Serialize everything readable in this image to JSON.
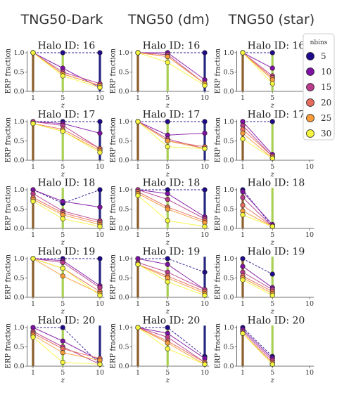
{
  "chart_data": {
    "type": "line",
    "columns": [
      "TNG50-Dark",
      "TNG50 (dm)",
      "TNG50 (star)"
    ],
    "panel_title_prefix": "Halo ID: ",
    "ylabel": "ERP fraction",
    "xlabel": "z",
    "xticks": [
      1,
      5,
      10
    ],
    "yticks": [
      "0.0",
      "0.5",
      "1.0"
    ],
    "ylim": [
      0,
      1.05
    ],
    "xlim": [
      0.2,
      10.6
    ],
    "vertical_lines": [
      {
        "x": 1,
        "color": "#8b5e2b"
      },
      {
        "x": 5,
        "color": "#a9cf54"
      },
      {
        "x": 10,
        "color": "#262680"
      }
    ],
    "legend": {
      "title": "nbins",
      "position": "right",
      "entries": [
        {
          "label": "5",
          "color": "#1f0a8c"
        },
        {
          "label": "10",
          "color": "#7e12a3"
        },
        {
          "label": "15",
          "color": "#b83b8c"
        },
        {
          "label": "20",
          "color": "#e56b5d"
        },
        {
          "label": "25",
          "color": "#f89c3a"
        },
        {
          "label": "30",
          "color": "#f5f540"
        }
      ]
    },
    "panels": [
      {
        "halo": "16",
        "col": 0,
        "series": [
          [
            1,
            1,
            1
          ],
          [
            1,
            0.6,
            0.1
          ],
          [
            1,
            0.5,
            0.2
          ],
          [
            1,
            0.45,
            0.15
          ],
          [
            1,
            0.45,
            0.15
          ],
          [
            1,
            0.4,
            0.1
          ]
        ]
      },
      {
        "halo": "16",
        "col": 1,
        "series": [
          [
            1,
            1,
            1
          ],
          [
            1,
            1,
            0.3
          ],
          [
            1,
            0.95,
            0.2
          ],
          [
            1,
            0.9,
            0.2
          ],
          [
            1,
            0.9,
            0.2
          ],
          [
            1,
            0.75,
            0.15
          ]
        ]
      },
      {
        "halo": "16",
        "col": 2,
        "series": [
          [
            1,
            1
          ],
          [
            1,
            0.6
          ],
          [
            1,
            0.4
          ],
          [
            1,
            0.35
          ],
          [
            1,
            0.3
          ],
          [
            1,
            0.2
          ]
        ]
      },
      {
        "halo": "17",
        "col": 0,
        "series": [
          [
            1,
            1,
            1
          ],
          [
            1,
            0.95,
            0.7
          ],
          [
            1,
            0.9,
            0.3
          ],
          [
            0.95,
            0.8,
            0.3
          ],
          [
            0.95,
            0.75,
            0.25
          ],
          [
            0.95,
            0.75,
            0.2
          ]
        ]
      },
      {
        "halo": "17",
        "col": 1,
        "series": [
          [
            1,
            1,
            1
          ],
          [
            1,
            0.65,
            0.7
          ],
          [
            1,
            0.55,
            0.3
          ],
          [
            1,
            0.5,
            0.35
          ],
          [
            1,
            0.5,
            0.3
          ],
          [
            1,
            0.35,
            0.3
          ]
        ]
      },
      {
        "halo": "17",
        "col": 2,
        "series": [
          [
            1,
            1
          ],
          [
            1,
            0.15
          ],
          [
            0.9,
            0.1
          ],
          [
            0.8,
            0.1
          ],
          [
            0.7,
            0.05
          ],
          [
            0.55,
            0.05
          ]
        ]
      },
      {
        "halo": "18",
        "col": 0,
        "series": [
          [
            1,
            0.65,
            1
          ],
          [
            1,
            0.7,
            0.55
          ],
          [
            0.9,
            0.45,
            0.2
          ],
          [
            0.8,
            0.4,
            0.15
          ],
          [
            0.75,
            0.35,
            0.1
          ],
          [
            0.7,
            0.25,
            0.05
          ]
        ]
      },
      {
        "halo": "18",
        "col": 1,
        "series": [
          [
            1,
            1,
            1
          ],
          [
            1,
            0.9,
            0.3
          ],
          [
            1,
            0.75,
            0.25
          ],
          [
            0.95,
            0.55,
            0.2
          ],
          [
            0.9,
            0.5,
            0.15
          ],
          [
            0.85,
            0.2,
            0.05
          ]
        ]
      },
      {
        "halo": "18",
        "col": 2,
        "series": [
          [
            1,
            0.05
          ],
          [
            0.95,
            0.1
          ],
          [
            0.8,
            0.05
          ],
          [
            0.6,
            0.05
          ],
          [
            0.45,
            0.05
          ],
          [
            0.35,
            0.05
          ]
        ]
      },
      {
        "halo": "19",
        "col": 0,
        "series": [
          [
            1,
            1,
            1
          ],
          [
            1,
            0.95,
            0.3
          ],
          [
            1,
            0.9,
            0.25
          ],
          [
            1,
            0.75,
            0.15
          ],
          [
            1,
            0.55,
            0.1
          ],
          [
            1,
            0.75,
            0.05
          ]
        ]
      },
      {
        "halo": "19",
        "col": 1,
        "series": [
          [
            1,
            1,
            0.65
          ],
          [
            1,
            0.85,
            0.2
          ],
          [
            0.9,
            0.65,
            0.2
          ],
          [
            0.85,
            0.55,
            0.15
          ],
          [
            0.85,
            0.5,
            0.1
          ],
          [
            0.85,
            0.4,
            0.05
          ]
        ]
      },
      {
        "halo": "19",
        "col": 2,
        "series": [
          [
            1,
            0.6
          ],
          [
            0.8,
            0.25
          ],
          [
            0.65,
            0.2
          ],
          [
            0.55,
            0.15
          ],
          [
            0.5,
            0.1
          ],
          [
            0.45,
            0.05
          ]
        ]
      },
      {
        "halo": "20",
        "col": 0,
        "series": [
          [
            1,
            1,
            0.05
          ],
          [
            1,
            0.65,
            0.15
          ],
          [
            0.9,
            0.5,
            0.05
          ],
          [
            0.85,
            0.45,
            0.2
          ],
          [
            0.8,
            0.35,
            0.15
          ],
          [
            0.75,
            0.1,
            0.05
          ]
        ]
      },
      {
        "halo": "20",
        "col": 1,
        "series": [
          [
            1,
            1,
            0.25
          ],
          [
            1,
            0.85,
            0.2
          ],
          [
            1,
            0.75,
            0.1
          ],
          [
            1,
            0.65,
            0.1
          ],
          [
            1,
            0.6,
            0.05
          ],
          [
            1,
            0.45,
            0.05
          ]
        ]
      },
      {
        "halo": "20",
        "col": 2,
        "series": [
          [
            1,
            0.25
          ],
          [
            0.95,
            0.2
          ],
          [
            0.9,
            0.15
          ],
          [
            0.85,
            0.1
          ],
          [
            0.85,
            0.05
          ],
          [
            0.85,
            0.05
          ]
        ]
      }
    ]
  }
}
